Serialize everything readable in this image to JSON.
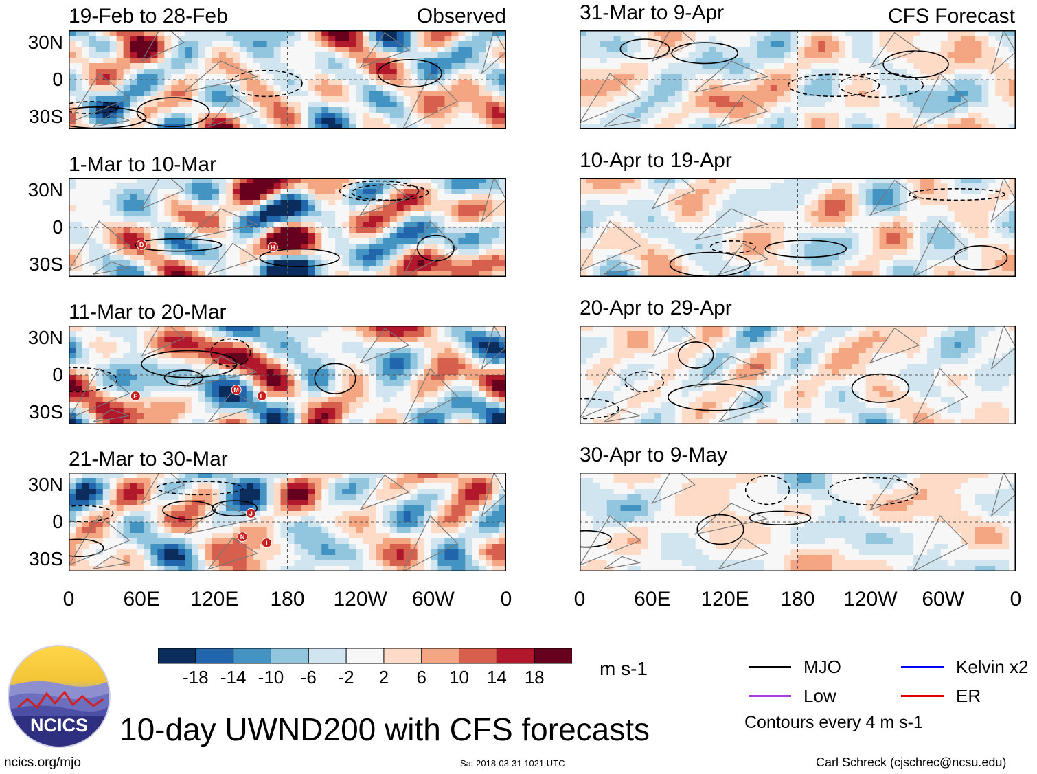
{
  "chart_data": {
    "type": "heatmap",
    "title": "10-day UWND200 with CFS forecasts",
    "variable": "UWND200",
    "units": "m s-1",
    "contour_interval_note": "Contours every 4 m s-1",
    "columns": {
      "left": "Observed",
      "right": "CFS Forecast"
    },
    "panels": [
      {
        "period": "19-Feb to 28-Feb",
        "type": "Observed",
        "tag": "Observed",
        "storm_markers": []
      },
      {
        "period": "1-Mar to 10-Mar",
        "type": "Observed",
        "tag": "",
        "storm_markers": [
          {
            "letter": "D",
            "lon": 60,
            "lat": -14
          },
          {
            "letter": "H",
            "lon": 168,
            "lat": -16
          }
        ]
      },
      {
        "period": "11-Mar to 20-Mar",
        "type": "Observed",
        "tag": "",
        "storm_markers": [
          {
            "letter": "E",
            "lon": 55,
            "lat": -17
          },
          {
            "letter": "M",
            "lon": 138,
            "lat": -12
          },
          {
            "letter": "L",
            "lon": 159,
            "lat": -17
          }
        ]
      },
      {
        "period": "21-Mar to 30-Mar",
        "type": "Observed",
        "tag": "",
        "storm_markers": [
          {
            "letter": "J",
            "lon": 150,
            "lat": 7
          },
          {
            "letter": "N",
            "lon": 143,
            "lat": -12
          },
          {
            "letter": "I",
            "lon": 163,
            "lat": -17
          }
        ]
      },
      {
        "period": "31-Mar to 9-Apr",
        "type": "CFS Forecast",
        "tag": "CFS Forecast",
        "storm_markers": []
      },
      {
        "period": "10-Apr to 19-Apr",
        "type": "CFS Forecast",
        "tag": "",
        "storm_markers": []
      },
      {
        "period": "20-Apr to 29-Apr",
        "type": "CFS Forecast",
        "tag": "",
        "storm_markers": []
      },
      {
        "period": "30-Apr to 9-May",
        "type": "CFS Forecast",
        "tag": "",
        "storm_markers": []
      }
    ],
    "y_ticks": [
      {
        "label": "30N",
        "lat": 30
      },
      {
        "label": "0",
        "lat": 0
      },
      {
        "label": "30S",
        "lat": -30
      }
    ],
    "x_ticks": [
      {
        "label": "0",
        "lon": 0
      },
      {
        "label": "60E",
        "lon": 60
      },
      {
        "label": "120E",
        "lon": 120
      },
      {
        "label": "180",
        "lon": 180
      },
      {
        "label": "120W",
        "lon": 240
      },
      {
        "label": "60W",
        "lon": 300
      },
      {
        "label": "0",
        "lon": 360
      }
    ],
    "lat_range": [
      -40,
      40
    ],
    "lon_range": [
      0,
      360
    ],
    "colorbar": {
      "colors": [
        "#0a2d5e",
        "#2166ac",
        "#4393c3",
        "#92c5de",
        "#d1e5f0",
        "#f7f7f7",
        "#fddbc7",
        "#f4a582",
        "#d6604d",
        "#b2182b",
        "#67001f"
      ],
      "tick_labels": [
        "-18",
        "-14",
        "-10",
        "-6",
        "-2",
        "2",
        "6",
        "10",
        "14",
        "18"
      ]
    },
    "legend": [
      {
        "label": "MJO",
        "color": "#000000"
      },
      {
        "label": "Kelvin x2",
        "color": "#0000ff"
      },
      {
        "label": "Low",
        "color": "#a040e0"
      },
      {
        "label": "ER",
        "color": "#e00000"
      }
    ]
  },
  "footer": {
    "logo_text": "NCICS",
    "site": "ncics.org/mjo",
    "timestamp": "Sat 2018-03-31 1021 UTC",
    "author": "Carl Schreck (cjschrec@ncsu.edu)"
  }
}
